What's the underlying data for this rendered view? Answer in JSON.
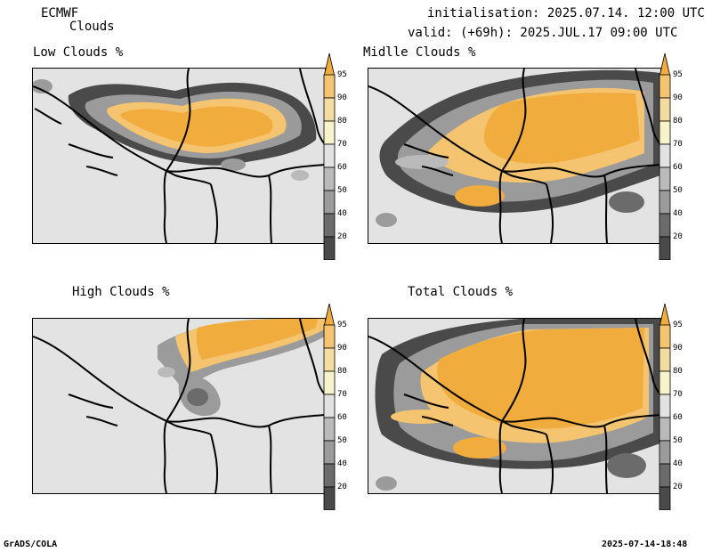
{
  "header": {
    "model": "ECMWF",
    "product": "Clouds",
    "init": "initialisation: 2025.07.14. 12:00 UTC",
    "valid": "valid: (+69h): 2025.JUL.17 09:00 UTC"
  },
  "panels": [
    {
      "title": "Low Clouds %"
    },
    {
      "title": "Midlle Clouds %"
    },
    {
      "title": "High Clouds %"
    },
    {
      "title": "Total Clouds %"
    }
  ],
  "colorbar": {
    "labels": [
      "95",
      "90",
      "80",
      "70",
      "60",
      "50",
      "40",
      "20"
    ],
    "colors": [
      "#f0ac3c",
      "#f4c470",
      "#f3dca0",
      "#f7f4cc",
      "#e2e2e2",
      "#bababa",
      "#9b9b9b",
      "#6b6b6b",
      "#4a4a4a",
      "#ffffff"
    ]
  },
  "footer": {
    "left": "GrADS/COLA",
    "right": "2025-07-14-18:48"
  }
}
